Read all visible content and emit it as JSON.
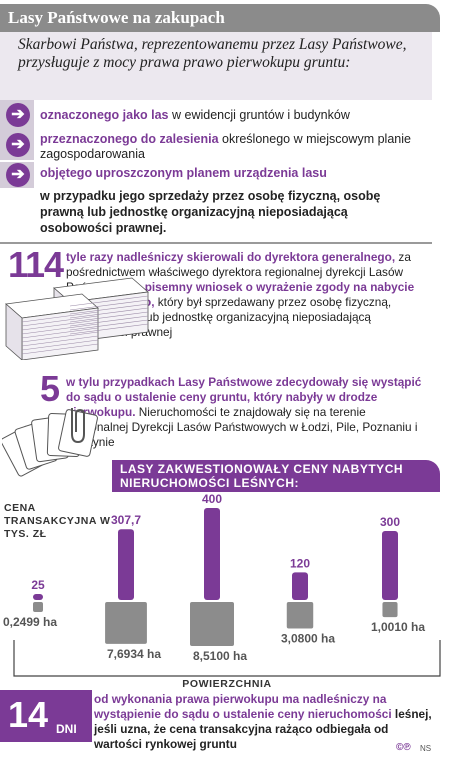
{
  "header": {
    "title": "Lasy Państwowe na zakupach"
  },
  "intro": {
    "text": "Skarbowi Państwa, reprezentowanemu przez Lasy Państwowe, przysługuje z mocy prawa prawo pierwokupu gruntu:"
  },
  "bullets": [
    {
      "highlight": "oznaczonego jako las",
      "rest": " w ewidencji gruntów i budynków"
    },
    {
      "highlight": "przeznaczonego do zalesienia",
      "rest": " określonego w miejscowym planie zagospodarowania"
    },
    {
      "highlight": "objętego uproszczonym planem urządzenia lasu",
      "rest": ""
    }
  ],
  "conclusion": "w przypadku jego sprzedaży przez osobę fizyczną, osobę prawną lub jednostkę organizacyjną nieposiadającą osobowości prawnej.",
  "stat114": {
    "number": "114",
    "lead": "tyle razy nadleśniczy skierowali do dyrektora generalnego,",
    "mid": " za pośrednictwem właściwego dyrektora regionalnej dyrekcji Lasów Państwowych, ",
    "highlight": "pisemny wniosek o wyrażenie zgody na nabycie gruntu leśnego,",
    "rest": " który był sprzedawany przez osobę fizyczną, osobę prawną lub jednostkę organizacyjną nieposiadającą osobowości prawnej"
  },
  "stat5": {
    "number": "5",
    "lead": "w tylu przypadkach Lasy Państwowe zdecydowały się wystąpić do sądu o ustalenie ceny gruntu, który nabyły w drodze pierwokupu.",
    "rest": " Nieruchomości te znajdowały się na terenie Regionalnej Dyrekcji Lasów Państwowych w Łodzi, Pile, Poznaniu i Olsztynie"
  },
  "chart_data": {
    "type": "bar",
    "title": "LASY ZAKWESTIONOWAŁY CENY NABYTYCH NIERUCHOMOŚCI LEŚNYCH:",
    "ylabel": "CENA TRANSAKCYJNA W TYS. ZŁ",
    "xlabel": "POWIERZCHNIA",
    "series": [
      {
        "name": "CENA TRANSAKCYJNA W TYS. ZŁ",
        "labels": [
          "25",
          "307,7",
          "400",
          "120",
          "300"
        ],
        "values": [
          25,
          307.7,
          400,
          120,
          300
        ]
      },
      {
        "name": "POWIERZCHNIA",
        "labels": [
          "0,2499 ha",
          "7,6934 ha",
          "8,5100 ha",
          "3,0800 ha",
          "1,0010 ha"
        ],
        "values": [
          0.2499,
          7.6934,
          8.51,
          3.08,
          1.001
        ]
      }
    ],
    "colors": {
      "price": "#7b3a96",
      "area": "#8c8c8c"
    }
  },
  "footer": {
    "number": "14",
    "unit": "DNI",
    "highlight": "od wykonania prawa pierwokupu ma nadleśniczy na wystąpienie do sądu o ustalenie ceny nieruchomości",
    "rest": " leśnej, jeśli uzna, że cena transakcyjna rażąco odbiegała od wartości rynkowej gruntu"
  },
  "credit": {
    "logo": "©℗",
    "author": "NS"
  }
}
